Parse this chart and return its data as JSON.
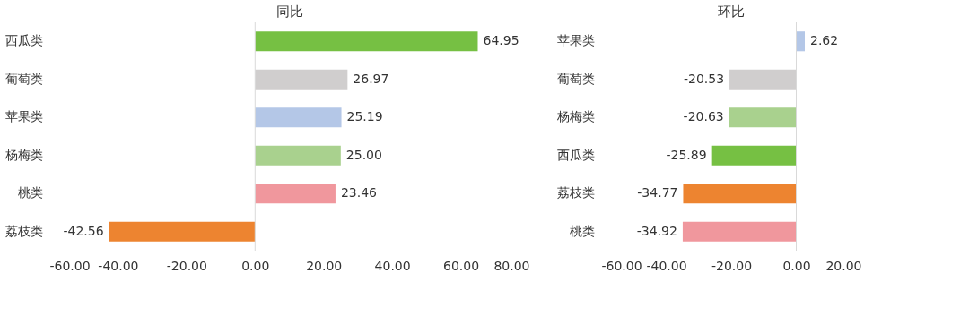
{
  "chart_data": [
    {
      "type": "bar",
      "orientation": "horizontal",
      "title": "同比",
      "categories": [
        "西瓜类",
        "葡萄类",
        "苹果类",
        "杨梅类",
        "桃类",
        "荔枝类"
      ],
      "values": [
        64.95,
        26.97,
        25.19,
        25.0,
        23.46,
        -42.56
      ],
      "value_labels": [
        "64.95",
        "26.97",
        "25.19",
        "25.00",
        "23.46",
        "-42.56"
      ],
      "colors": [
        "#76c043",
        "#d0cece",
        "#b4c7e7",
        "#a9d18e",
        "#f0979d",
        "#ed8430"
      ],
      "xlim": [
        -60,
        80
      ],
      "xticks": [
        {
          "value": -60,
          "label": "-60.00"
        },
        {
          "value": -40,
          "label": "-40.00"
        },
        {
          "value": -20,
          "label": "-20.00"
        },
        {
          "value": 0,
          "label": "0.00"
        },
        {
          "value": 20,
          "label": "20.00"
        },
        {
          "value": 40,
          "label": "40.00"
        },
        {
          "value": 60,
          "label": "60.00"
        },
        {
          "value": 80,
          "label": "80.00"
        }
      ],
      "ref_lines": [
        {
          "axis": "x",
          "value": 0,
          "color": "#d9d9d9"
        }
      ],
      "grid": false
    },
    {
      "type": "bar",
      "orientation": "horizontal",
      "title": "环比",
      "categories": [
        "苹果类",
        "葡萄类",
        "杨梅类",
        "西瓜类",
        "荔枝类",
        "桃类"
      ],
      "values": [
        2.62,
        -20.53,
        -20.63,
        -25.89,
        -34.77,
        -34.92
      ],
      "value_labels": [
        "2.62",
        "-20.53",
        "-20.63",
        "-25.89",
        "-34.77",
        "-34.92"
      ],
      "colors": [
        "#b4c7e7",
        "#d0cece",
        "#a9d18e",
        "#76c043",
        "#ed8430",
        "#f0979d"
      ],
      "xlim": [
        -60,
        20
      ],
      "xticks": [
        {
          "value": -60,
          "label": "-60.00"
        },
        {
          "value": -40,
          "label": "-40.00"
        },
        {
          "value": -20,
          "label": "-20.00"
        },
        {
          "value": 0,
          "label": "0.00"
        },
        {
          "value": 20,
          "label": "20.00"
        }
      ],
      "ref_lines": [
        {
          "axis": "x",
          "value": 0,
          "color": "#d9d9d9"
        }
      ],
      "grid": false
    }
  ]
}
